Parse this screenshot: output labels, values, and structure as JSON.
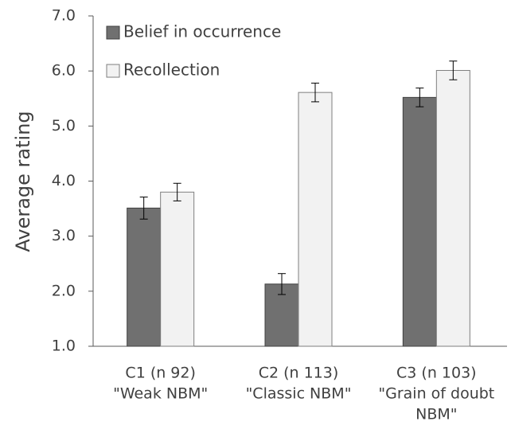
{
  "chart_data": {
    "type": "bar",
    "y_label": "Average rating",
    "categories": [
      [
        "C1 (n 92)",
        "\"Weak NBM\""
      ],
      [
        "C2 (n 113)",
        "\"Classic NBM\""
      ],
      [
        "C3 (n 103)",
        "\"Grain of doubt",
        "NBM\""
      ]
    ],
    "series": [
      {
        "name": "Belief in occurrence",
        "color": "#707070",
        "values": [
          3.51,
          2.13,
          5.52
        ],
        "errors": [
          0.2,
          0.19,
          0.17
        ]
      },
      {
        "name": "Recollection",
        "color": "#f2f2f2",
        "values": [
          3.8,
          5.61,
          6.01
        ],
        "errors": [
          0.16,
          0.17,
          0.17
        ]
      }
    ],
    "ylim": [
      1,
      7
    ],
    "yticks": [
      {
        "value": 1,
        "label": "1.0"
      },
      {
        "value": 2,
        "label": "2.0"
      },
      {
        "value": 3,
        "label": "3.0"
      },
      {
        "value": 4,
        "label": "4.0"
      },
      {
        "value": 5,
        "label": "5.0"
      },
      {
        "value": 6,
        "label": "6.0"
      },
      {
        "value": 7,
        "label": "7.0"
      }
    ],
    "legend": "top-left"
  }
}
